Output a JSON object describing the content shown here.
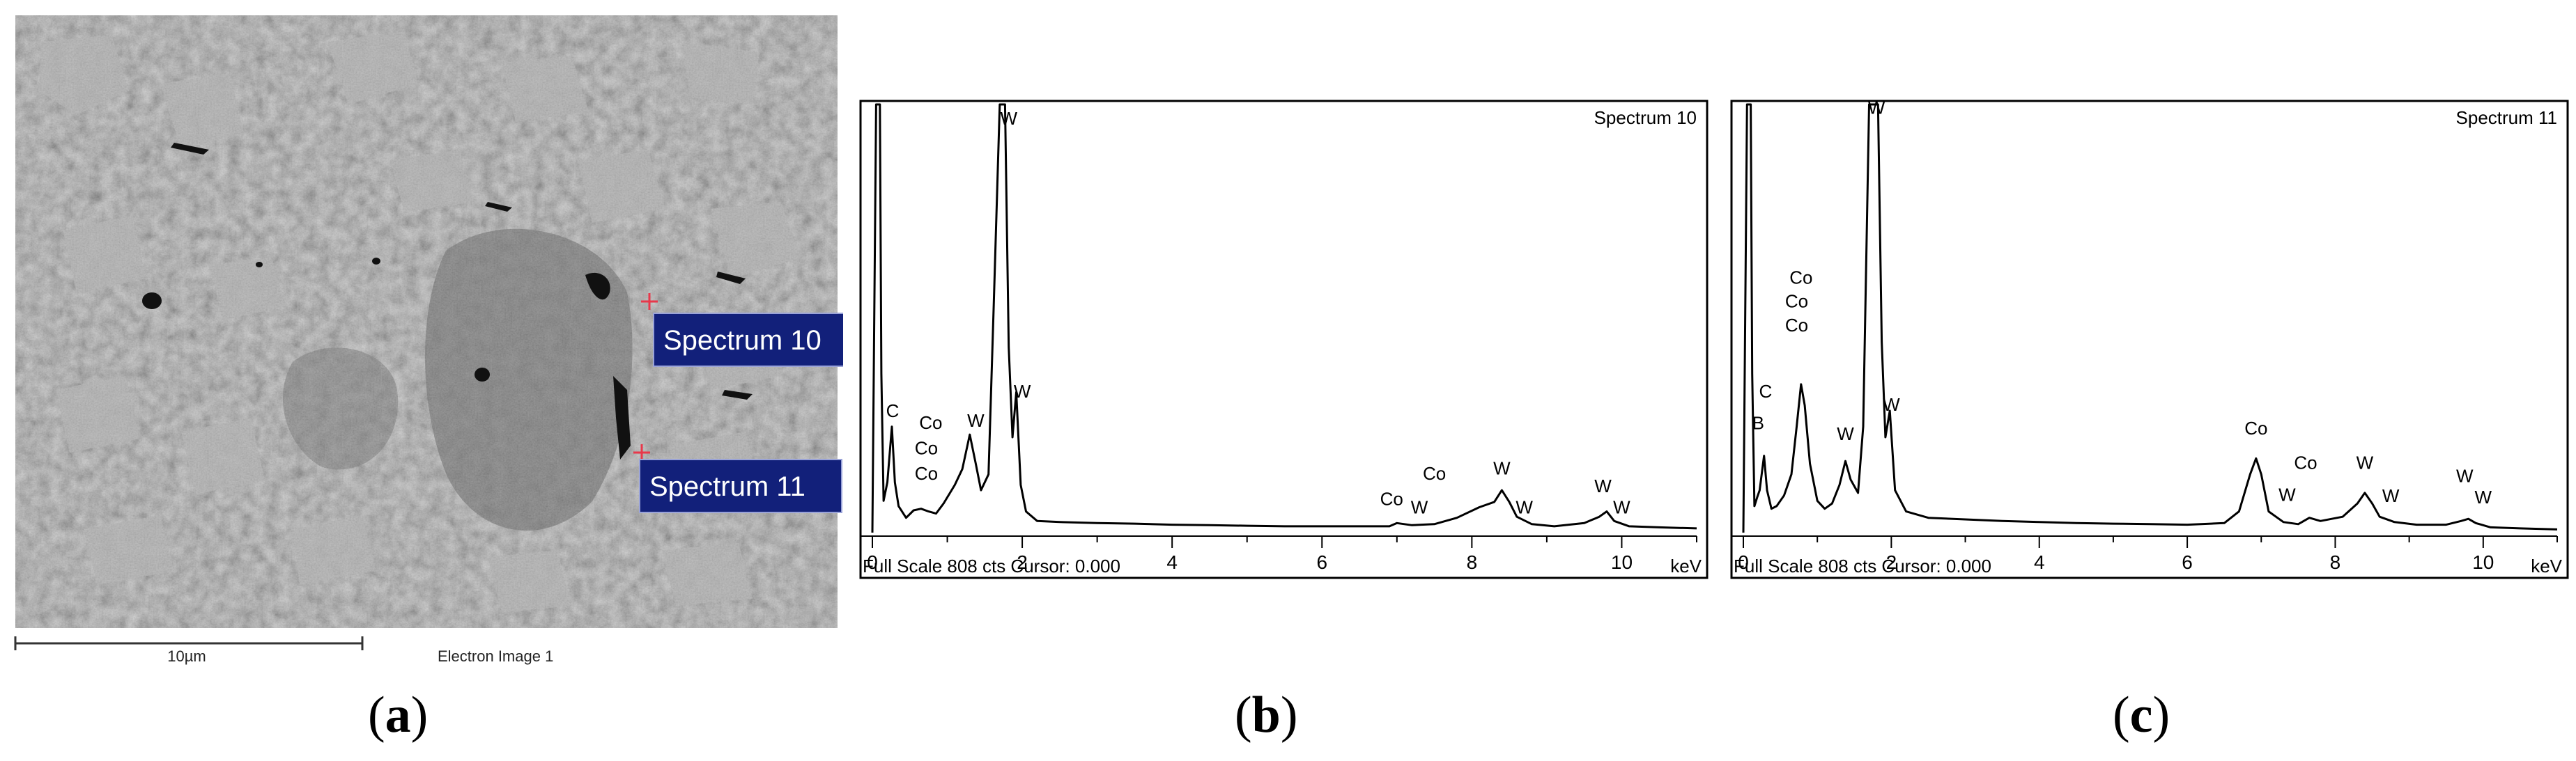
{
  "panels": {
    "a": {
      "letter": "a"
    },
    "b": {
      "letter": "b"
    },
    "c": {
      "letter": "c"
    }
  },
  "sem_image": {
    "scale_bar_label": "10µm",
    "caption": "Electron Image 1",
    "markers": [
      {
        "label": "Spectrum 10"
      },
      {
        "label": "Spectrum 11"
      }
    ],
    "label_box_color": "#12207a",
    "marker_color": "#e8384b"
  },
  "chart_data": [
    {
      "type": "line",
      "title": "Spectrum 10",
      "xlabel": "keV",
      "footer": "Full Scale 808 cts Cursor: 0.000",
      "xlim": [
        0,
        11
      ],
      "ylim": [
        0,
        808
      ],
      "xticks": [
        0,
        2,
        4,
        6,
        8,
        10
      ],
      "series": [
        {
          "x": [
            0.0,
            0.05,
            0.08,
            0.1,
            0.12,
            0.15,
            0.2,
            0.26,
            0.3,
            0.35,
            0.45,
            0.55,
            0.65,
            0.75,
            0.85,
            0.95,
            1.1,
            1.2,
            1.3,
            1.38,
            1.45,
            1.55,
            1.62,
            1.7,
            1.77,
            1.82,
            1.87,
            1.92,
            1.98,
            2.05,
            2.2,
            2.5,
            3.0,
            3.5,
            4.0,
            4.5,
            5.0,
            5.5,
            6.0,
            6.5,
            6.9,
            7.0,
            7.2,
            7.5,
            7.8,
            8.1,
            8.3,
            8.4,
            8.5,
            8.6,
            8.8,
            9.1,
            9.5,
            9.7,
            9.8,
            9.9,
            10.1,
            10.5,
            11.0
          ],
          "y": [
            0,
            808,
            808,
            808,
            300,
            60,
            95,
            200,
            95,
            50,
            28,
            42,
            45,
            40,
            36,
            55,
            90,
            120,
            185,
            130,
            80,
            110,
            430,
            808,
            808,
            350,
            180,
            265,
            90,
            40,
            22,
            20,
            18,
            17,
            15,
            14,
            13,
            12,
            12,
            12,
            12,
            18,
            14,
            16,
            28,
            48,
            58,
            80,
            58,
            30,
            16,
            12,
            18,
            30,
            40,
            22,
            12,
            10,
            8
          ]
        }
      ],
      "annotations": [
        {
          "text": "W",
          "x": 1.82,
          "y": 770
        },
        {
          "text": "C",
          "x": 0.27,
          "y": 218
        },
        {
          "text": "Co",
          "x": 0.78,
          "y": 196
        },
        {
          "text": "Co",
          "x": 0.72,
          "y": 148
        },
        {
          "text": "Co",
          "x": 0.72,
          "y": 100
        },
        {
          "text": "W",
          "x": 1.38,
          "y": 200
        },
        {
          "text": "W",
          "x": 2.0,
          "y": 255
        },
        {
          "text": "Co",
          "x": 6.93,
          "y": 52
        },
        {
          "text": "W",
          "x": 7.3,
          "y": 36
        },
        {
          "text": "Co",
          "x": 7.5,
          "y": 100
        },
        {
          "text": "W",
          "x": 8.4,
          "y": 110
        },
        {
          "text": "W",
          "x": 8.7,
          "y": 36
        },
        {
          "text": "W",
          "x": 9.75,
          "y": 76
        },
        {
          "text": "W",
          "x": 10.0,
          "y": 36
        }
      ],
      "line_color": "#000000"
    },
    {
      "type": "line",
      "title": "Spectrum 11",
      "xlabel": "keV",
      "footer": "Full Scale 808 cts Cursor: 0.000",
      "xlim": [
        0,
        11
      ],
      "ylim": [
        0,
        808
      ],
      "xticks": [
        0,
        2,
        4,
        6,
        8,
        10
      ],
      "series": [
        {
          "x": [
            0.0,
            0.05,
            0.08,
            0.1,
            0.12,
            0.15,
            0.19,
            0.22,
            0.28,
            0.32,
            0.38,
            0.45,
            0.55,
            0.65,
            0.72,
            0.78,
            0.83,
            0.9,
            1.0,
            1.1,
            1.2,
            1.3,
            1.38,
            1.45,
            1.55,
            1.62,
            1.7,
            1.77,
            1.82,
            1.87,
            1.92,
            1.98,
            2.05,
            2.2,
            2.5,
            3.0,
            3.5,
            4.0,
            4.5,
            5.0,
            5.5,
            6.0,
            6.5,
            6.7,
            6.85,
            6.93,
            7.0,
            7.1,
            7.3,
            7.5,
            7.65,
            7.8,
            8.1,
            8.3,
            8.4,
            8.5,
            8.6,
            8.8,
            9.1,
            9.5,
            9.7,
            9.8,
            9.9,
            10.1,
            10.5,
            11.0
          ],
          "y": [
            0,
            808,
            808,
            808,
            300,
            50,
            68,
            80,
            145,
            80,
            45,
            50,
            70,
            110,
            200,
            280,
            240,
            130,
            60,
            45,
            55,
            90,
            135,
            100,
            75,
            200,
            808,
            808,
            808,
            360,
            180,
            230,
            80,
            40,
            28,
            25,
            22,
            20,
            18,
            17,
            16,
            15,
            18,
            40,
            110,
            140,
            110,
            40,
            20,
            16,
            28,
            22,
            30,
            55,
            75,
            55,
            30,
            20,
            15,
            15,
            22,
            26,
            18,
            10,
            8,
            6
          ]
        }
      ],
      "annotations": [
        {
          "text": "W",
          "x": 1.8,
          "y": 790
        },
        {
          "text": "Co",
          "x": 0.78,
          "y": 470
        },
        {
          "text": "Co",
          "x": 0.72,
          "y": 425
        },
        {
          "text": "Co",
          "x": 0.72,
          "y": 380
        },
        {
          "text": "C",
          "x": 0.3,
          "y": 255
        },
        {
          "text": "B",
          "x": 0.2,
          "y": 195
        },
        {
          "text": "W",
          "x": 1.38,
          "y": 175
        },
        {
          "text": "W",
          "x": 2.0,
          "y": 230
        },
        {
          "text": "Co",
          "x": 6.93,
          "y": 185
        },
        {
          "text": "Co",
          "x": 7.6,
          "y": 120
        },
        {
          "text": "W",
          "x": 7.35,
          "y": 60
        },
        {
          "text": "W",
          "x": 8.4,
          "y": 120
        },
        {
          "text": "W",
          "x": 8.75,
          "y": 58
        },
        {
          "text": "W",
          "x": 9.75,
          "y": 95
        },
        {
          "text": "W",
          "x": 10.0,
          "y": 55
        }
      ],
      "line_color": "#000000"
    }
  ]
}
